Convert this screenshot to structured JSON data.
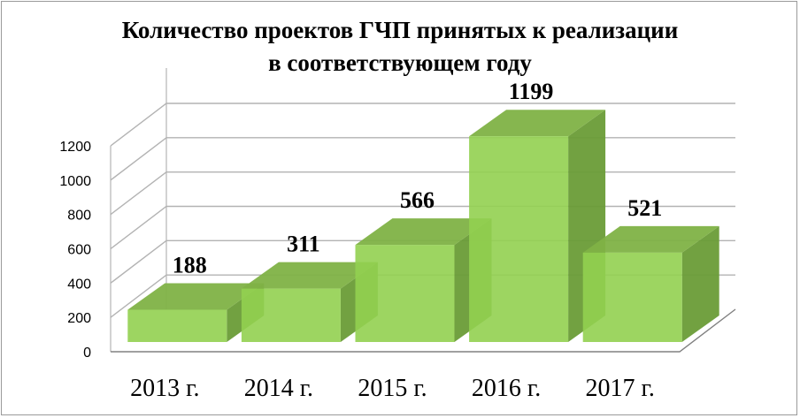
{
  "chart_data": {
    "type": "bar",
    "title": [
      "Количество проектов ГЧП принятых к реализации",
      "в соответствующем  году"
    ],
    "categories": [
      "2013 г.",
      "2014 г.",
      "2015 г.",
      "2016 г.",
      "2017 г."
    ],
    "values": [
      188,
      311,
      566,
      1199,
      521
    ],
    "data_labels": [
      "188",
      "311",
      "566",
      "1199",
      "521"
    ],
    "yticks": [
      "0",
      "200",
      "400",
      "600",
      "800",
      "1000",
      "1200"
    ],
    "ylim": [
      0,
      1200
    ],
    "grid": true,
    "style": "3d-column",
    "colors": {
      "front": "#92d050",
      "side": "#6a9c37",
      "top": "#7fb246",
      "grid": "#b3b3b3",
      "axis": "#808080"
    }
  }
}
